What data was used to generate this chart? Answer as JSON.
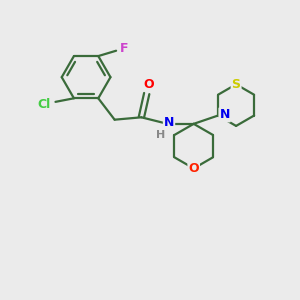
{
  "background_color": "#ebebeb",
  "bond_color": "#3a6b3a",
  "atom_colors": {
    "F": "#cc44cc",
    "Cl": "#44cc44",
    "O_carbonyl": "#ff0000",
    "N": "#0000ee",
    "H": "#888888",
    "S": "#cccc00",
    "O_ring": "#ff2200"
  },
  "figsize": [
    3.0,
    3.0
  ],
  "dpi": 100
}
